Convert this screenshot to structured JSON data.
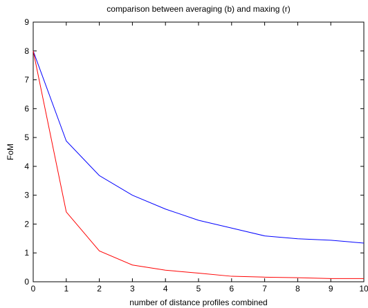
{
  "chart_data": {
    "type": "line",
    "title": "comparison between averaging (b) and maxing (r)",
    "xlabel": "number of distance profiles combined",
    "ylabel": "FoM",
    "xlim": [
      0,
      10
    ],
    "ylim": [
      0,
      9
    ],
    "xticks": [
      "0",
      "1",
      "2",
      "3",
      "4",
      "5",
      "6",
      "7",
      "8",
      "9",
      "10"
    ],
    "yticks": [
      "0",
      "1",
      "2",
      "3",
      "4",
      "5",
      "6",
      "7",
      "8",
      "9"
    ],
    "grid": false,
    "legend": "none",
    "x": [
      0,
      1,
      2,
      3,
      4,
      5,
      6,
      7,
      8,
      9,
      10
    ],
    "series": [
      {
        "color": "#0000ff",
        "values": [
          8.0,
          4.88,
          3.68,
          3.0,
          2.52,
          2.13,
          1.86,
          1.59,
          1.49,
          1.44,
          1.34
        ]
      },
      {
        "color": "#ff0000",
        "values": [
          8.0,
          2.42,
          1.07,
          0.58,
          0.4,
          0.3,
          0.19,
          0.16,
          0.14,
          0.11,
          0.11
        ]
      }
    ]
  }
}
